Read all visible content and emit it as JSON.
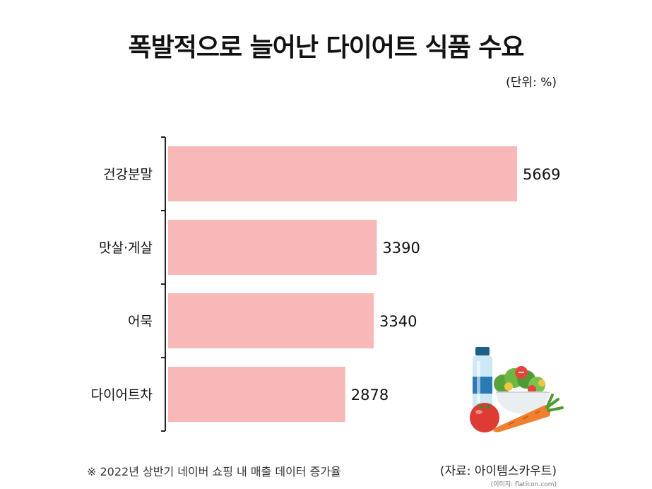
{
  "title": "폭발적으로 늘어난 다이어트 식품 수요",
  "unit": "(단위: %)",
  "footnote": "※ 2022년 상반기 네이버 쇼핑 내 매출 데이터 증가율",
  "source": "(자료: 아이템스카우트)",
  "image_credit": "(이미지: flaticon.com)",
  "colors": {
    "bar": "#f8b8b8",
    "axis": "#222222"
  },
  "icons": [
    "salad-icon",
    "water-bottle-icon",
    "tomato-icon",
    "carrot-icon"
  ],
  "chart_data": {
    "type": "bar",
    "orientation": "horizontal",
    "title": "폭발적으로 늘어난 다이어트 식품 수요",
    "unit": "(단위: %)",
    "categories": [
      "건강분말",
      "맛살·게살",
      "어묵",
      "다이어트차"
    ],
    "values": [
      5669,
      3390,
      3340,
      2878
    ],
    "xlim": [
      0,
      5669
    ],
    "grid": false,
    "legend": "none"
  }
}
